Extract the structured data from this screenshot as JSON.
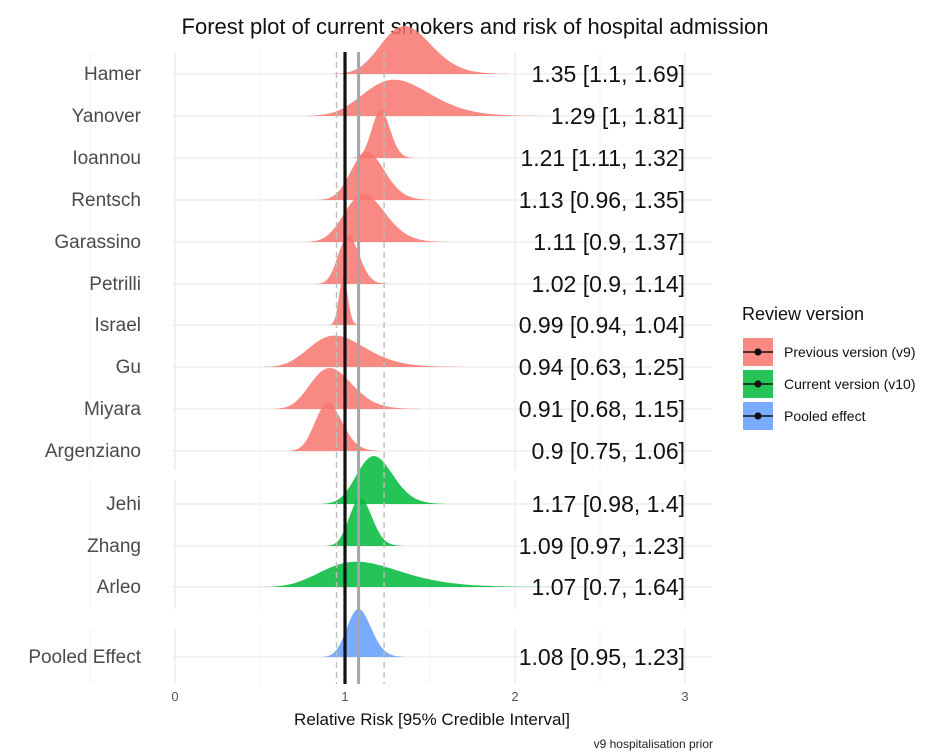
{
  "chart_data": {
    "type": "ridgeline-forest",
    "title": "Forest plot of current smokers and risk of hospital admission",
    "xlabel": "Relative Risk [95% Credible Interval]",
    "caption": "v9 hospitalisation prior",
    "xlim": [
      -0.5,
      3.2
    ],
    "xticks": [
      "0",
      "1",
      "2",
      "3"
    ],
    "reference_line": 1,
    "pooled_line": 1.08,
    "pooled_interval": [
      0.95,
      1.23
    ],
    "grid": true,
    "legend": {
      "title": "Review version",
      "placement": "right",
      "items": [
        {
          "label": "Previous version (v9)",
          "color": "#F8766D"
        },
        {
          "label": "Current version (v10)",
          "color": "#00BA38"
        },
        {
          "label": "Pooled effect",
          "color": "#619CFF"
        }
      ]
    },
    "groups": [
      {
        "name": "Previous version (v9)",
        "color": "#F8766D"
      },
      {
        "name": "Current version (v10)",
        "color": "#00BA38"
      },
      {
        "name": "Pooled effect",
        "color": "#619CFF"
      }
    ],
    "studies": [
      {
        "name": "Hamer",
        "group": 0,
        "estimate": 1.35,
        "lower": 1.1,
        "upper": 1.69,
        "label": "1.35 [1.1, 1.69]"
      },
      {
        "name": "Yanover",
        "group": 0,
        "estimate": 1.29,
        "lower": 1,
        "upper": 1.81,
        "label": "1.29 [1, 1.81]"
      },
      {
        "name": "Ioannou",
        "group": 0,
        "estimate": 1.21,
        "lower": 1.11,
        "upper": 1.32,
        "label": "1.21 [1.11, 1.32]"
      },
      {
        "name": "Rentsch",
        "group": 0,
        "estimate": 1.13,
        "lower": 0.96,
        "upper": 1.35,
        "label": "1.13 [0.96, 1.35]"
      },
      {
        "name": "Garassino",
        "group": 0,
        "estimate": 1.11,
        "lower": 0.9,
        "upper": 1.37,
        "label": "1.11 [0.9, 1.37]"
      },
      {
        "name": "Petrilli",
        "group": 0,
        "estimate": 1.02,
        "lower": 0.9,
        "upper": 1.14,
        "label": "1.02 [0.9, 1.14]"
      },
      {
        "name": "Israel",
        "group": 0,
        "estimate": 0.99,
        "lower": 0.94,
        "upper": 1.04,
        "label": "0.99 [0.94, 1.04]"
      },
      {
        "name": "Gu",
        "group": 0,
        "estimate": 0.94,
        "lower": 0.63,
        "upper": 1.25,
        "label": "0.94 [0.63, 1.25]"
      },
      {
        "name": "Miyara",
        "group": 0,
        "estimate": 0.91,
        "lower": 0.68,
        "upper": 1.15,
        "label": "0.91 [0.68, 1.15]"
      },
      {
        "name": "Argenziano",
        "group": 0,
        "estimate": 0.9,
        "lower": 0.75,
        "upper": 1.06,
        "label": "0.9 [0.75, 1.06]"
      },
      {
        "name": "Jehi",
        "group": 1,
        "estimate": 1.17,
        "lower": 0.98,
        "upper": 1.4,
        "label": "1.17 [0.98, 1.4]"
      },
      {
        "name": "Zhang",
        "group": 1,
        "estimate": 1.09,
        "lower": 0.97,
        "upper": 1.23,
        "label": "1.09 [0.97, 1.23]"
      },
      {
        "name": "Arleo",
        "group": 1,
        "estimate": 1.07,
        "lower": 0.7,
        "upper": 1.64,
        "label": "1.07 [0.7, 1.64]"
      },
      {
        "name": "Pooled Effect",
        "group": 2,
        "estimate": 1.08,
        "lower": 0.95,
        "upper": 1.23,
        "label": "1.08 [0.95, 1.23]"
      }
    ]
  }
}
